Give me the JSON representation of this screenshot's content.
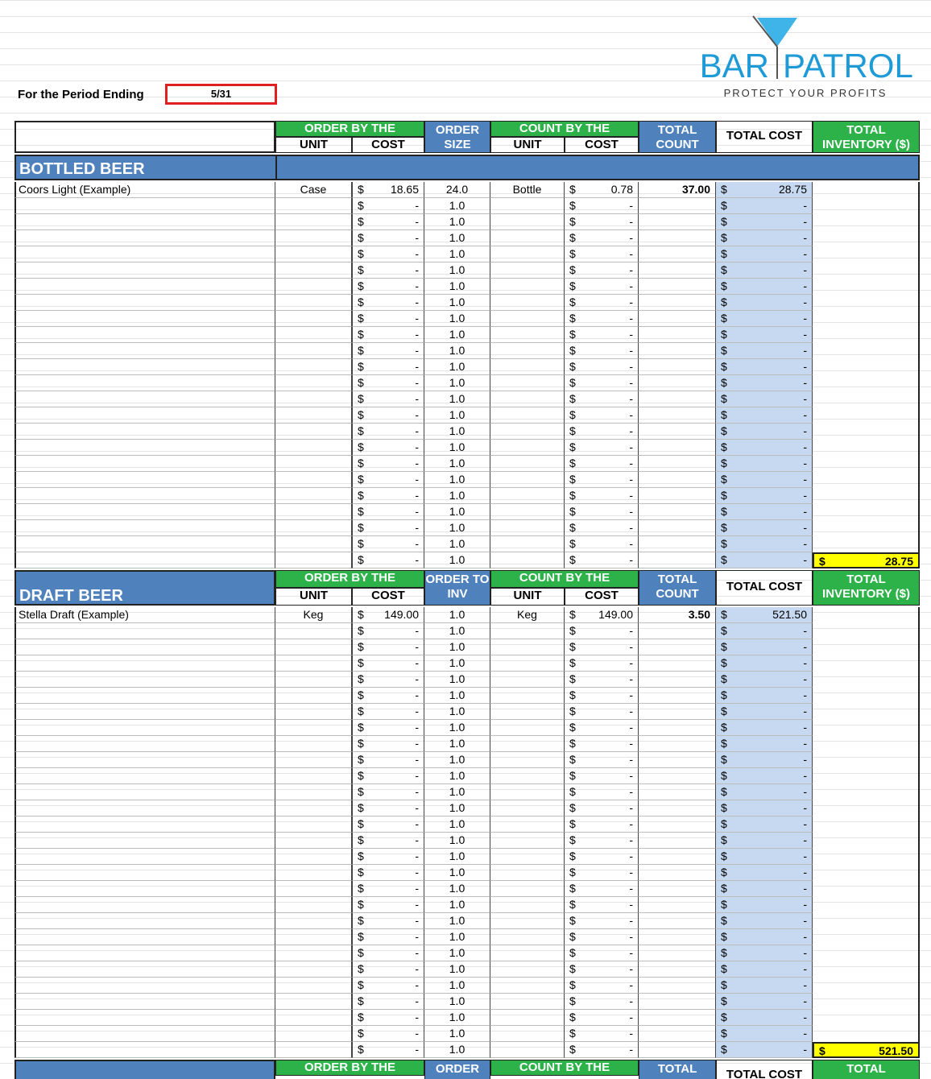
{
  "period": {
    "label": "For the Period Ending",
    "value": "5/31"
  },
  "logo": {
    "name_left": "BAR",
    "name_right": "PATROL",
    "tagline": "PROTECT YOUR PROFITS"
  },
  "currency": "$",
  "sections": [
    {
      "title": "BOTTLED BEER",
      "header": {
        "order_by": "ORDER BY THE",
        "order_unit": "UNIT",
        "order_cost": "COST",
        "order_size": "ORDER SIZE",
        "count_by": "COUNT BY THE",
        "count_unit": "UNIT",
        "count_cost": "COST",
        "total_count": "TOTAL COUNT",
        "total_cost": "TOTAL COST",
        "total_inventory": "TOTAL INVENTORY ($)"
      },
      "rows": [
        [
          "Coors Light (Example)",
          "Case",
          "18.65",
          "24.0",
          "Bottle",
          "0.78",
          "37.00",
          "28.75"
        ],
        [
          null,
          null,
          "-",
          "1.0",
          null,
          "-",
          null,
          "-"
        ],
        [
          null,
          null,
          "-",
          "1.0",
          null,
          "-",
          null,
          "-"
        ],
        [
          null,
          null,
          "-",
          "1.0",
          null,
          "-",
          null,
          "-"
        ],
        [
          null,
          null,
          "-",
          "1.0",
          null,
          "-",
          null,
          "-"
        ],
        [
          null,
          null,
          "-",
          "1.0",
          null,
          "-",
          null,
          "-"
        ],
        [
          null,
          null,
          "-",
          "1.0",
          null,
          "-",
          null,
          "-"
        ],
        [
          null,
          null,
          "-",
          "1.0",
          null,
          "-",
          null,
          "-"
        ],
        [
          null,
          null,
          "-",
          "1.0",
          null,
          "-",
          null,
          "-"
        ],
        [
          null,
          null,
          "-",
          "1.0",
          null,
          "-",
          null,
          "-"
        ],
        [
          null,
          null,
          "-",
          "1.0",
          null,
          "-",
          null,
          "-"
        ],
        [
          null,
          null,
          "-",
          "1.0",
          null,
          "-",
          null,
          "-"
        ],
        [
          null,
          null,
          "-",
          "1.0",
          null,
          "-",
          null,
          "-"
        ],
        [
          null,
          null,
          "-",
          "1.0",
          null,
          "-",
          null,
          "-"
        ],
        [
          null,
          null,
          "-",
          "1.0",
          null,
          "-",
          null,
          "-"
        ],
        [
          null,
          null,
          "-",
          "1.0",
          null,
          "-",
          null,
          "-"
        ],
        [
          null,
          null,
          "-",
          "1.0",
          null,
          "-",
          null,
          "-"
        ],
        [
          null,
          null,
          "-",
          "1.0",
          null,
          "-",
          null,
          "-"
        ],
        [
          null,
          null,
          "-",
          "1.0",
          null,
          "-",
          null,
          "-"
        ],
        [
          null,
          null,
          "-",
          "1.0",
          null,
          "-",
          null,
          "-"
        ],
        [
          null,
          null,
          "-",
          "1.0",
          null,
          "-",
          null,
          "-"
        ],
        [
          null,
          null,
          "-",
          "1.0",
          null,
          "-",
          null,
          "-"
        ],
        [
          null,
          null,
          "-",
          "1.0",
          null,
          "-",
          null,
          "-"
        ],
        [
          null,
          null,
          "-",
          "1.0",
          null,
          "-",
          null,
          "-"
        ]
      ],
      "total": "28.75"
    },
    {
      "title": "DRAFT BEER",
      "header": {
        "order_by": "ORDER BY THE",
        "order_unit": "UNIT",
        "order_cost": "COST",
        "order_size": "ORDER TO INV",
        "count_by": "COUNT BY THE",
        "count_unit": "UNIT",
        "count_cost": "COST",
        "total_count": "TOTAL COUNT",
        "total_cost": "TOTAL COST",
        "total_inventory": "TOTAL INVENTORY ($)"
      },
      "rows": [
        [
          "Stella Draft (Example)",
          "Keg",
          "149.00",
          "1.0",
          "Keg",
          "149.00",
          "3.50",
          "521.50"
        ],
        [
          null,
          null,
          "-",
          "1.0",
          null,
          "-",
          null,
          "-"
        ],
        [
          null,
          null,
          "-",
          "1.0",
          null,
          "-",
          null,
          "-"
        ],
        [
          null,
          null,
          "-",
          "1.0",
          null,
          "-",
          null,
          "-"
        ],
        [
          null,
          null,
          "-",
          "1.0",
          null,
          "-",
          null,
          "-"
        ],
        [
          null,
          null,
          "-",
          "1.0",
          null,
          "-",
          null,
          "-"
        ],
        [
          null,
          null,
          "-",
          "1.0",
          null,
          "-",
          null,
          "-"
        ],
        [
          null,
          null,
          "-",
          "1.0",
          null,
          "-",
          null,
          "-"
        ],
        [
          null,
          null,
          "-",
          "1.0",
          null,
          "-",
          null,
          "-"
        ],
        [
          null,
          null,
          "-",
          "1.0",
          null,
          "-",
          null,
          "-"
        ],
        [
          null,
          null,
          "-",
          "1.0",
          null,
          "-",
          null,
          "-"
        ],
        [
          null,
          null,
          "-",
          "1.0",
          null,
          "-",
          null,
          "-"
        ],
        [
          null,
          null,
          "-",
          "1.0",
          null,
          "-",
          null,
          "-"
        ],
        [
          null,
          null,
          "-",
          "1.0",
          null,
          "-",
          null,
          "-"
        ],
        [
          null,
          null,
          "-",
          "1.0",
          null,
          "-",
          null,
          "-"
        ],
        [
          null,
          null,
          "-",
          "1.0",
          null,
          "-",
          null,
          "-"
        ],
        [
          null,
          null,
          "-",
          "1.0",
          null,
          "-",
          null,
          "-"
        ],
        [
          null,
          null,
          "-",
          "1.0",
          null,
          "-",
          null,
          "-"
        ],
        [
          null,
          null,
          "-",
          "1.0",
          null,
          "-",
          null,
          "-"
        ],
        [
          null,
          null,
          "-",
          "1.0",
          null,
          "-",
          null,
          "-"
        ],
        [
          null,
          null,
          "-",
          "1.0",
          null,
          "-",
          null,
          "-"
        ],
        [
          null,
          null,
          "-",
          "1.0",
          null,
          "-",
          null,
          "-"
        ],
        [
          null,
          null,
          "-",
          "1.0",
          null,
          "-",
          null,
          "-"
        ],
        [
          null,
          null,
          "-",
          "1.0",
          null,
          "-",
          null,
          "-"
        ],
        [
          null,
          null,
          "-",
          "1.0",
          null,
          "-",
          null,
          "-"
        ],
        [
          null,
          null,
          "-",
          "1.0",
          null,
          "-",
          null,
          "-"
        ],
        [
          null,
          null,
          "-",
          "1.0",
          null,
          "-",
          null,
          "-"
        ],
        [
          null,
          null,
          "-",
          "1.0",
          null,
          "-",
          null,
          "-"
        ]
      ],
      "total": "521.50"
    },
    {
      "header": {
        "order_by": "ORDER BY THE",
        "order_size": "ORDER",
        "count_by": "COUNT BY THE",
        "total_count": "TOTAL",
        "total_cost": "TOTAL COST",
        "total_inventory": "TOTAL"
      }
    }
  ]
}
